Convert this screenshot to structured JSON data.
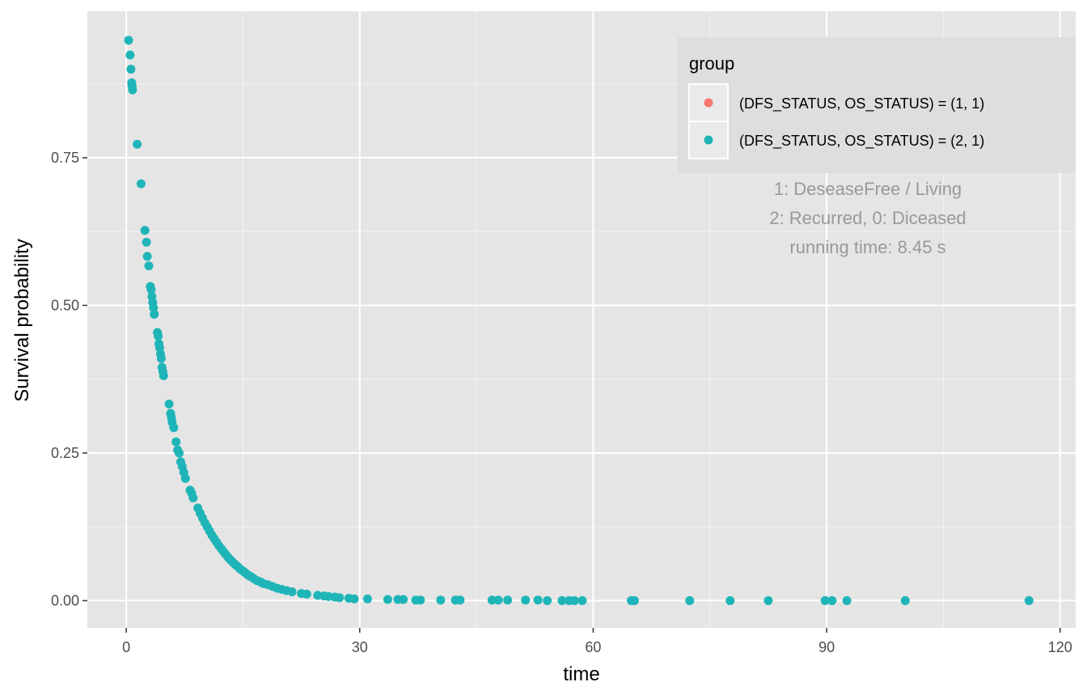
{
  "chart_data": {
    "type": "scatter",
    "xlabel": "time",
    "ylabel": "Survival probability",
    "xlim": [
      -5,
      122
    ],
    "ylim": [
      -0.046,
      0.998
    ],
    "x_ticks": [
      0,
      30,
      60,
      90,
      120
    ],
    "x_tick_labels": [
      "0",
      "30",
      "60",
      "90",
      "120"
    ],
    "y_ticks": [
      0,
      0.25,
      0.5,
      0.75
    ],
    "y_tick_labels": [
      "0.00",
      "0.25",
      "0.50",
      "0.75"
    ],
    "grid": true,
    "legend": {
      "title": "group",
      "placement": "top-right",
      "entries": [
        {
          "label": "(DFS_STATUS, OS_STATUS) = (1, 1)",
          "color": "#F8766D"
        },
        {
          "label": "(DFS_STATUS, OS_STATUS) = (2, 1)",
          "color": "#1FB5B8"
        }
      ]
    },
    "annotations": [
      "1: DeseaseFree / Living",
      "2: Recurred, 0: Diceased",
      "running time:  8.45 s"
    ],
    "series": [
      {
        "name": "(DFS_STATUS, OS_STATUS) = (1, 1)",
        "color": "#F8766D",
        "points": []
      },
      {
        "name": "(DFS_STATUS, OS_STATUS) = (2, 1)",
        "color": "#1FB5B8",
        "points": [
          [
            0.3,
            0.949
          ],
          [
            0.5,
            0.924
          ],
          [
            0.6,
            0.9
          ],
          [
            0.7,
            0.877
          ],
          [
            0.75,
            0.872
          ],
          [
            0.8,
            0.865
          ],
          [
            1.4,
            0.773
          ],
          [
            1.9,
            0.706
          ],
          [
            2.4,
            0.627
          ],
          [
            2.6,
            0.607
          ],
          [
            2.7,
            0.583
          ],
          [
            2.9,
            0.567
          ],
          [
            3.1,
            0.532
          ],
          [
            3.2,
            0.527
          ],
          [
            3.3,
            0.515
          ],
          [
            3.4,
            0.505
          ],
          [
            3.5,
            0.496
          ],
          [
            3.6,
            0.485
          ],
          [
            4.0,
            0.454
          ],
          [
            4.1,
            0.448
          ],
          [
            4.2,
            0.435
          ],
          [
            4.3,
            0.428
          ],
          [
            4.4,
            0.418
          ],
          [
            4.5,
            0.41
          ],
          [
            4.6,
            0.395
          ],
          [
            4.7,
            0.388
          ],
          [
            4.8,
            0.381
          ],
          [
            5.5,
            0.333
          ],
          [
            5.7,
            0.317
          ],
          [
            5.8,
            0.31
          ],
          [
            5.9,
            0.302
          ],
          [
            6.1,
            0.293
          ],
          [
            6.4,
            0.269
          ],
          [
            6.6,
            0.255
          ],
          [
            6.8,
            0.25
          ],
          [
            7.0,
            0.235
          ],
          [
            7.2,
            0.227
          ],
          [
            7.4,
            0.217
          ],
          [
            7.6,
            0.207
          ],
          [
            8.2,
            0.187
          ],
          [
            8.4,
            0.182
          ],
          [
            8.6,
            0.174
          ],
          [
            9.2,
            0.157
          ],
          [
            9.5,
            0.148
          ],
          [
            9.8,
            0.14
          ],
          [
            10.1,
            0.132
          ],
          [
            10.4,
            0.125
          ],
          [
            10.7,
            0.118
          ],
          [
            11.0,
            0.111
          ],
          [
            11.3,
            0.105
          ],
          [
            11.6,
            0.099
          ],
          [
            11.9,
            0.093
          ],
          [
            12.2,
            0.088
          ],
          [
            12.5,
            0.083
          ],
          [
            12.8,
            0.078
          ],
          [
            13.1,
            0.073
          ],
          [
            13.4,
            0.069
          ],
          [
            13.7,
            0.065
          ],
          [
            14.0,
            0.061
          ],
          [
            14.3,
            0.058
          ],
          [
            14.6,
            0.054
          ],
          [
            14.9,
            0.051
          ],
          [
            15.2,
            0.048
          ],
          [
            15.5,
            0.045
          ],
          [
            15.8,
            0.042
          ],
          [
            16.1,
            0.04
          ],
          [
            16.4,
            0.037
          ],
          [
            16.8,
            0.034
          ],
          [
            17.2,
            0.032
          ],
          [
            17.6,
            0.029
          ],
          [
            18.2,
            0.027
          ],
          [
            18.8,
            0.024
          ],
          [
            19.4,
            0.021
          ],
          [
            20.0,
            0.019
          ],
          [
            20.6,
            0.017
          ],
          [
            21.3,
            0.015
          ],
          [
            22.5,
            0.012
          ],
          [
            23.2,
            0.011
          ],
          [
            24.6,
            0.009
          ],
          [
            25.4,
            0.008
          ],
          [
            26.0,
            0.007
          ],
          [
            26.8,
            0.006
          ],
          [
            27.4,
            0.005
          ],
          [
            28.6,
            0.004
          ],
          [
            29.3,
            0.003
          ],
          [
            31.0,
            0.003
          ],
          [
            33.6,
            0.002
          ],
          [
            34.9,
            0.002
          ],
          [
            35.6,
            0.002
          ],
          [
            37.2,
            0.001
          ],
          [
            37.8,
            0.001
          ],
          [
            40.4,
            0.001
          ],
          [
            42.3,
            0.001
          ],
          [
            42.9,
            0.001
          ],
          [
            47.0,
            0.001
          ],
          [
            47.8,
            0.001
          ],
          [
            49.0,
            0.001
          ],
          [
            51.3,
            0.001
          ],
          [
            52.9,
            0.001
          ],
          [
            54.1,
            0.0
          ],
          [
            56.0,
            0.0
          ],
          [
            56.9,
            0.0
          ],
          [
            57.6,
            0.0
          ],
          [
            58.6,
            0.0
          ],
          [
            64.9,
            0.0
          ],
          [
            65.3,
            0.0
          ],
          [
            72.4,
            0.0
          ],
          [
            77.6,
            0.0
          ],
          [
            82.5,
            0.0
          ],
          [
            89.8,
            0.0
          ],
          [
            90.7,
            0.0
          ],
          [
            92.6,
            0.0
          ],
          [
            100.1,
            0.0
          ],
          [
            116.0,
            0.0
          ]
        ]
      }
    ]
  }
}
